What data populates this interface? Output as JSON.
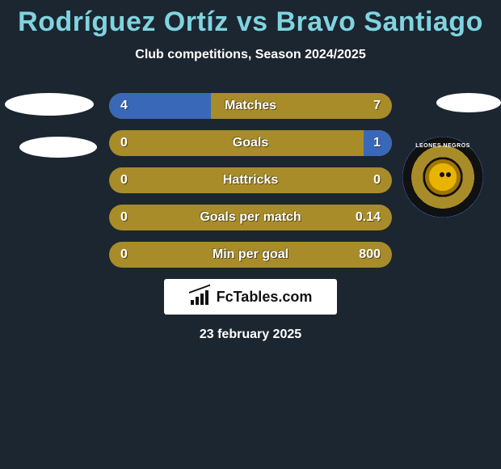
{
  "title": "Rodríguez Ortíz vs Bravo Santiago",
  "subtitle": "Club competitions, Season 2024/2025",
  "footer_logo_text": "FcTables.com",
  "footer_date": "23 february 2025",
  "club_badge": {
    "top_text": "LEONES NEGROS",
    "outer_color": "#3a68b8",
    "ring_color": "#a88c2a",
    "inner_color": "#111111"
  },
  "colors": {
    "background": "#1c2630",
    "title": "#7fd4e0",
    "bar_base": "#a88c2a",
    "bar_fill": "#3a68b8",
    "text": "#ffffff"
  },
  "bars": [
    {
      "label": "Matches",
      "left": "4",
      "right": "7",
      "left_pct": 36,
      "right_pct": 0
    },
    {
      "label": "Goals",
      "left": "0",
      "right": "1",
      "left_pct": 0,
      "right_pct": 10
    },
    {
      "label": "Hattricks",
      "left": "0",
      "right": "0",
      "left_pct": 0,
      "right_pct": 0
    },
    {
      "label": "Goals per match",
      "left": "0",
      "right": "0.14",
      "left_pct": 0,
      "right_pct": 0
    },
    {
      "label": "Min per goal",
      "left": "0",
      "right": "800",
      "left_pct": 0,
      "right_pct": 0
    }
  ]
}
